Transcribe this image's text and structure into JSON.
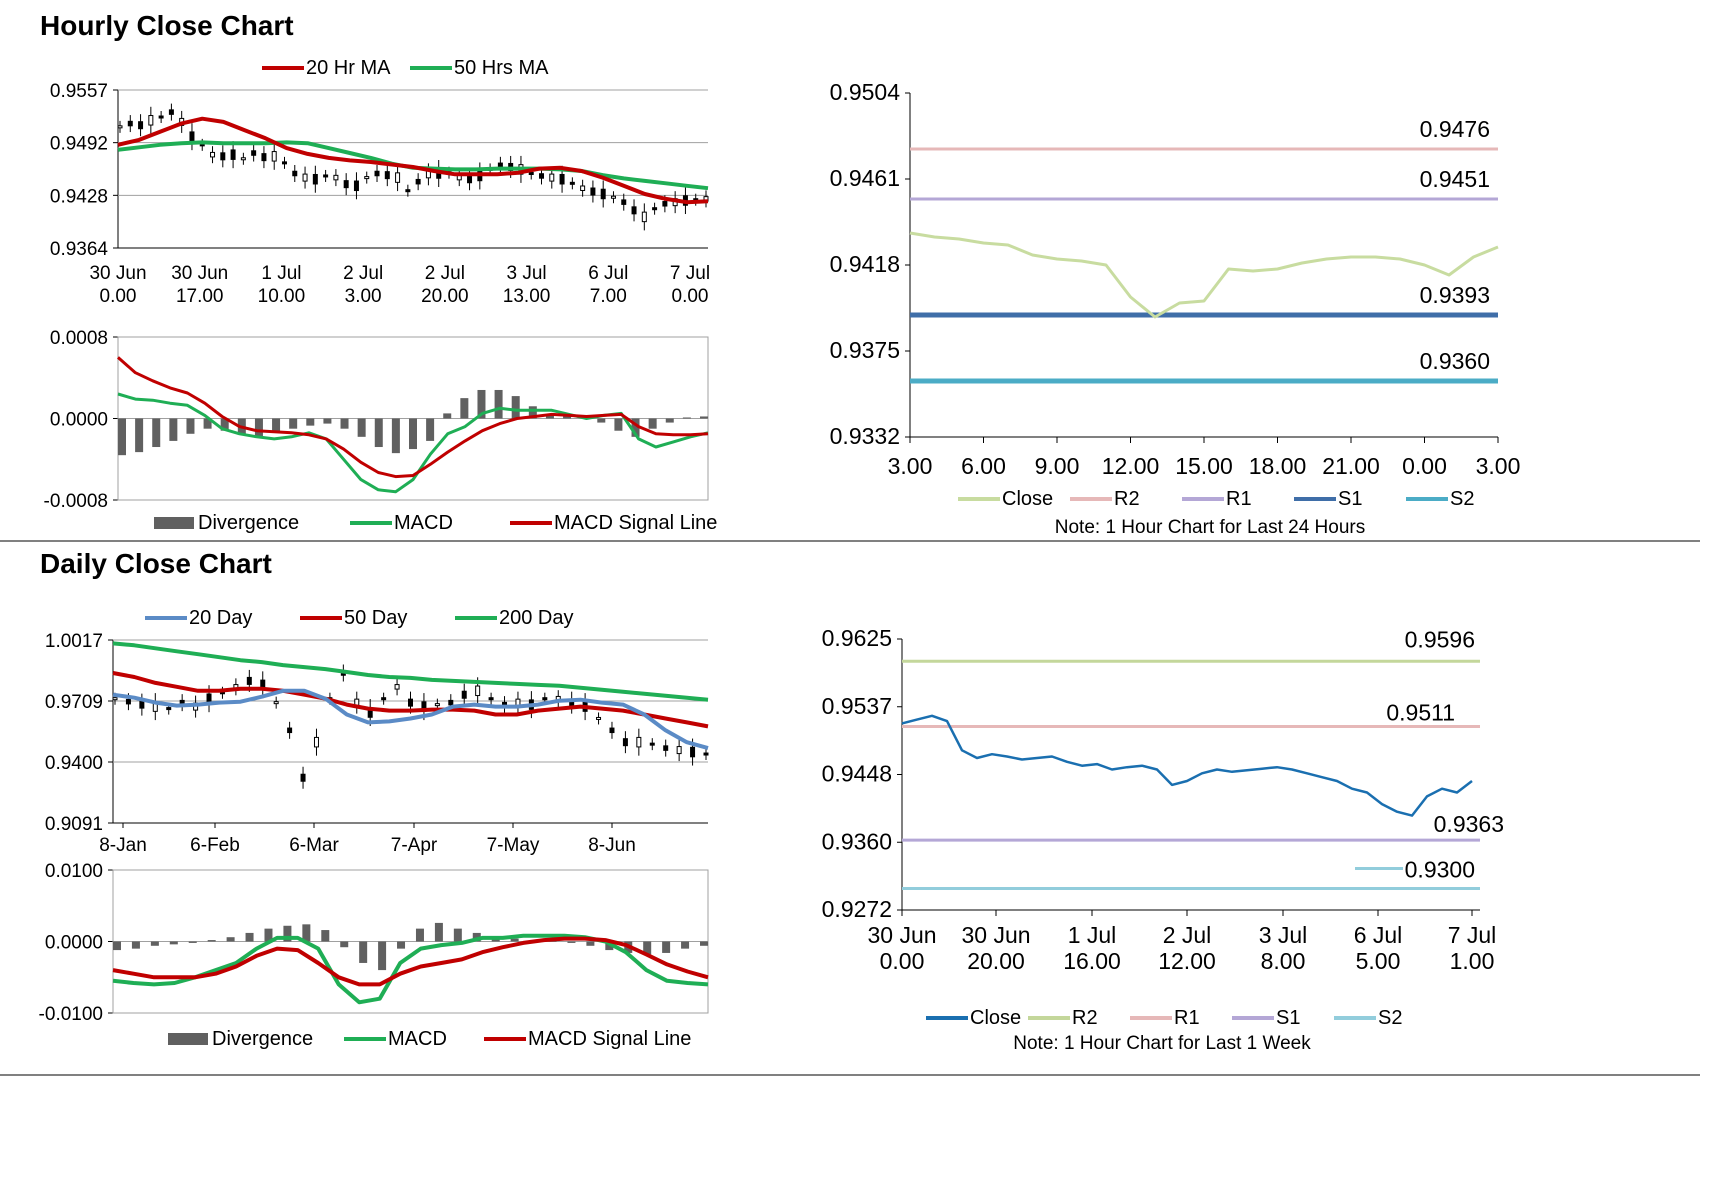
{
  "sections": [
    {
      "title": "Hourly Close Chart"
    },
    {
      "title": "Daily Close Chart"
    }
  ],
  "colors": {
    "red": "#c00000",
    "green": "#1fae55",
    "blue": "#5b8bc6",
    "grid": "#a0a0a0",
    "bar": "#606060",
    "candle": "#000000",
    "close_light": "#c8dca0",
    "r2_pink": "#e6b8b8",
    "r1_lavender": "#b4a7d6",
    "s1_blue": "#3f6ea8",
    "s2_teal": "#4bacc6",
    "close_blue": "#1a6fb0",
    "r2_green": "#c4d79b",
    "s2_light": "#92cddc"
  },
  "legends": {
    "hourly_price": [
      {
        "name": "20 Hr MA",
        "color": "#c00000"
      },
      {
        "name": "50 Hrs MA",
        "color": "#1fae55"
      }
    ],
    "hourly_macd": [
      {
        "name": "Divergence",
        "color": "#606060",
        "box": true
      },
      {
        "name": "MACD",
        "color": "#1fae55"
      },
      {
        "name": "MACD Signal Line",
        "color": "#c00000"
      }
    ],
    "hourly_levels": [
      {
        "name": "Close",
        "color": "#c8dca0"
      },
      {
        "name": "R2",
        "color": "#e6b8b8"
      },
      {
        "name": "R1",
        "color": "#b4a7d6"
      },
      {
        "name": "S1",
        "color": "#3f6ea8"
      },
      {
        "name": "S2",
        "color": "#4bacc6"
      }
    ],
    "daily_price": [
      {
        "name": "20 Day",
        "color": "#5b8bc6"
      },
      {
        "name": "50 Day",
        "color": "#c00000"
      },
      {
        "name": "200 Day",
        "color": "#1fae55"
      }
    ],
    "daily_macd": [
      {
        "name": "Divergence",
        "color": "#606060",
        "box": true
      },
      {
        "name": "MACD",
        "color": "#1fae55"
      },
      {
        "name": "MACD Signal Line",
        "color": "#c00000"
      }
    ],
    "daily_levels": [
      {
        "name": "Close",
        "color": "#1a6fb0"
      },
      {
        "name": "R2",
        "color": "#c4d79b"
      },
      {
        "name": "R1",
        "color": "#e6b8b8"
      },
      {
        "name": "S1",
        "color": "#b4a7d6"
      },
      {
        "name": "S2",
        "color": "#92cddc"
      }
    ]
  },
  "notes": {
    "hourly": "Note: 1 Hour Chart for Last 24 Hours",
    "daily": "Note: 1 Hour Chart for Last 1 Week"
  },
  "chart_data": [
    {
      "id": "hourly_price",
      "type": "line",
      "title": "Hourly Close Chart",
      "yticks": [
        "0.9557",
        "0.9492",
        "0.9428",
        "0.9364"
      ],
      "ylim": [
        0.9364,
        0.9557
      ],
      "xticks": [
        [
          "30 Jun",
          "0.00"
        ],
        [
          "30 Jun",
          "17.00"
        ],
        [
          "1 Jul",
          "10.00"
        ],
        [
          "2 Jul",
          "3.00"
        ],
        [
          "2 Jul",
          "20.00"
        ],
        [
          "3 Jul",
          "13.00"
        ],
        [
          "6 Jul",
          "7.00"
        ],
        [
          "7 Jul",
          "0.00"
        ]
      ],
      "series": [
        {
          "name": "20 Hr MA",
          "color": "#c00000",
          "values": [
            0.949,
            0.9496,
            0.9506,
            0.9516,
            0.9522,
            0.9518,
            0.9508,
            0.9498,
            0.9486,
            0.9479,
            0.9474,
            0.9471,
            0.9469,
            0.9466,
            0.9463,
            0.9458,
            0.9454,
            0.9454,
            0.9454,
            0.9456,
            0.9461,
            0.9462,
            0.9458,
            0.945,
            0.944,
            0.943,
            0.9424,
            0.942,
            0.9421
          ]
        },
        {
          "name": "50 Hrs MA",
          "color": "#1fae55",
          "values": [
            0.9484,
            0.9487,
            0.949,
            0.9492,
            0.9493,
            0.9492,
            0.9492,
            0.9492,
            0.9493,
            0.9492,
            0.9486,
            0.948,
            0.9474,
            0.9467,
            0.9462,
            0.9461,
            0.946,
            0.946,
            0.9461,
            0.9461,
            0.9461,
            0.946,
            0.9458,
            0.9453,
            0.9449,
            0.9446,
            0.9443,
            0.944,
            0.9437
          ]
        },
        {
          "name": "Close",
          "color": "#000000",
          "values": [
            0.9512,
            0.9516,
            0.9514,
            0.952,
            0.9524,
            0.953,
            0.9518,
            0.95,
            0.949,
            0.9478,
            0.9476,
            0.9478,
            0.9473,
            0.948,
            0.9475,
            0.9476,
            0.9468,
            0.9455,
            0.945,
            0.9448,
            0.9452,
            0.945,
            0.9442,
            0.944,
            0.945,
            0.9455,
            0.9453,
            0.945,
            0.9434,
            0.9445,
            0.9454,
            0.9455,
            0.9456,
            0.945,
            0.9448,
            0.9452,
            0.946,
            0.9465,
            0.9463,
            0.946,
            0.9455,
            0.9452,
            0.945,
            0.9448,
            0.9443,
            0.9437,
            0.9433,
            0.943,
            0.9426,
            0.942,
            0.941,
            0.9402,
            0.9412,
            0.9418,
            0.942,
            0.9422,
            0.9423,
            0.9424
          ]
        }
      ]
    },
    {
      "id": "hourly_macd",
      "type": "line",
      "yticks": [
        "0.0008",
        "0.0000",
        "-0.0008"
      ],
      "ylim": [
        -0.0008,
        0.0008
      ],
      "series": [
        {
          "name": "Divergence",
          "color": "#606060",
          "values": [
            -0.00036,
            -0.00033,
            -0.00028,
            -0.00022,
            -0.00015,
            -0.0001,
            -0.00012,
            -0.00016,
            -0.00018,
            -0.00014,
            -0.0001,
            -7e-05,
            -5e-05,
            -0.0001,
            -0.00018,
            -0.00028,
            -0.00034,
            -0.0003,
            -0.00022,
            5e-05,
            0.0002,
            0.00028,
            0.00028,
            0.00022,
            0.00012,
            4e-05,
            2e-05,
            2e-05,
            -4e-05,
            -0.00012,
            -0.00018,
            -0.0001,
            -4e-05,
            1e-05,
            2e-05
          ]
        },
        {
          "name": "MACD",
          "color": "#1fae55",
          "values": [
            0.00024,
            0.00019,
            0.00018,
            0.00015,
            0.00013,
            3e-05,
            -0.0001,
            -0.00015,
            -0.00018,
            -0.0002,
            -0.00018,
            -0.00014,
            -0.0002,
            -0.0004,
            -0.0006,
            -0.0007,
            -0.00072,
            -0.0006,
            -0.00035,
            -0.00015,
            -8e-05,
            5e-05,
            0.0001,
            8e-05,
            8e-05,
            8e-05,
            4e-05,
            0.0,
            3e-05,
            5e-05,
            -0.0002,
            -0.00028,
            -0.00023,
            -0.00018,
            -0.00014
          ]
        },
        {
          "name": "MACD Signal Line",
          "color": "#c00000",
          "values": [
            0.0006,
            0.00045,
            0.00037,
            0.0003,
            0.00025,
            0.00015,
            2e-05,
            -8e-05,
            -0.00012,
            -0.00013,
            -0.00014,
            -0.00016,
            -0.0002,
            -0.0003,
            -0.00043,
            -0.00053,
            -0.00057,
            -0.00056,
            -0.00045,
            -0.00033,
            -0.00022,
            -0.00012,
            -5e-05,
            0.0,
            2e-05,
            4e-05,
            3e-05,
            2e-05,
            3e-05,
            4e-05,
            -8e-05,
            -0.00015,
            -0.00016,
            -0.00016,
            -0.00015
          ]
        }
      ]
    },
    {
      "id": "hourly_levels",
      "type": "line",
      "yticks": [
        "0.9504",
        "0.9461",
        "0.9418",
        "0.9375",
        "0.9332"
      ],
      "ylim": [
        0.9332,
        0.9504
      ],
      "xticks": [
        "3.00",
        "6.00",
        "9.00",
        "12.00",
        "15.00",
        "18.00",
        "21.00",
        "0.00",
        "3.00"
      ],
      "levels": [
        {
          "name": "R2",
          "value": "0.9476",
          "color": "#e6b8b8"
        },
        {
          "name": "R1",
          "value": "0.9451",
          "color": "#b4a7d6"
        },
        {
          "name": "S1",
          "value": "0.9393",
          "color": "#3f6ea8"
        },
        {
          "name": "S2",
          "value": "0.9360",
          "color": "#4bacc6"
        }
      ],
      "series": [
        {
          "name": "Close",
          "color": "#c8dca0",
          "values": [
            0.9434,
            0.9432,
            0.9431,
            0.9429,
            0.9428,
            0.9423,
            0.9421,
            0.942,
            0.9418,
            0.9402,
            0.9392,
            0.9399,
            0.94,
            0.9416,
            0.9415,
            0.9416,
            0.9419,
            0.9421,
            0.9422,
            0.9422,
            0.9421,
            0.9418,
            0.9413,
            0.9422,
            0.9427
          ]
        }
      ]
    },
    {
      "id": "daily_price",
      "type": "line",
      "title": "Daily Close Chart",
      "yticks": [
        "1.0017",
        "0.9709",
        "0.9400",
        "0.9091"
      ],
      "ylim": [
        0.9091,
        1.0017
      ],
      "xticks": [
        "8-Jan",
        "6-Feb",
        "6-Mar",
        "7-Apr",
        "7-May",
        "8-Jun"
      ],
      "series": [
        {
          "name": "20 Day",
          "color": "#5b8bc6",
          "values": [
            0.974,
            0.9725,
            0.97,
            0.9685,
            0.969,
            0.97,
            0.9705,
            0.973,
            0.976,
            0.976,
            0.972,
            0.964,
            0.96,
            0.9605,
            0.962,
            0.964,
            0.968,
            0.969,
            0.968,
            0.968,
            0.969,
            0.971,
            0.9715,
            0.97,
            0.969,
            0.964,
            0.956,
            0.95,
            0.947
          ]
        },
        {
          "name": "50 Day",
          "color": "#c00000",
          "values": [
            0.985,
            0.983,
            0.98,
            0.978,
            0.976,
            0.976,
            0.977,
            0.977,
            0.976,
            0.974,
            0.972,
            0.969,
            0.967,
            0.966,
            0.966,
            0.9665,
            0.9665,
            0.966,
            0.964,
            0.964,
            0.966,
            0.967,
            0.968,
            0.967,
            0.966,
            0.964,
            0.962,
            0.96,
            0.958
          ]
        },
        {
          "name": "200 Day",
          "color": "#1fae55",
          "values": [
            1.0,
            0.999,
            0.9975,
            0.996,
            0.9945,
            0.993,
            0.9915,
            0.9905,
            0.989,
            0.988,
            0.987,
            0.9855,
            0.984,
            0.983,
            0.9825,
            0.9815,
            0.981,
            0.9805,
            0.98,
            0.9795,
            0.979,
            0.9785,
            0.9775,
            0.9765,
            0.9755,
            0.9745,
            0.9735,
            0.9725,
            0.9715
          ]
        },
        {
          "name": "Close",
          "color": "#000000",
          "values": [
            0.972,
            0.9705,
            0.969,
            0.968,
            0.967,
            0.97,
            0.968,
            0.972,
            0.975,
            0.978,
            0.981,
            0.979,
            0.97,
            0.956,
            0.932,
            0.95,
            0.972,
            0.985,
            0.97,
            0.965,
            0.972,
            0.978,
            0.97,
            0.968,
            0.969,
            0.97,
            0.974,
            0.976,
            0.972,
            0.969,
            0.97,
            0.969,
            0.972,
            0.972,
            0.97,
            0.968,
            0.962,
            0.956,
            0.95,
            0.95,
            0.949,
            0.947,
            0.946,
            0.945,
            0.944
          ]
        }
      ]
    },
    {
      "id": "daily_macd",
      "type": "line",
      "yticks": [
        "0.0100",
        "0.0000",
        "-0.0100"
      ],
      "ylim": [
        -0.01,
        0.01
      ],
      "series": [
        {
          "name": "Divergence",
          "color": "#606060",
          "values": [
            -0.0012,
            -0.001,
            -0.0006,
            -0.0004,
            -0.0002,
            0.0002,
            0.0006,
            0.0012,
            0.0018,
            0.0022,
            0.0024,
            0.0016,
            -0.0008,
            -0.003,
            -0.004,
            -0.001,
            0.0018,
            0.0026,
            0.0018,
            0.0012,
            0.0006,
            0.0004,
            0.0002,
            0.0001,
            -0.0002,
            -0.0006,
            -0.0012,
            -0.0016,
            -0.0018,
            -0.0016,
            -0.001,
            -0.0006
          ]
        },
        {
          "name": "MACD",
          "color": "#1fae55",
          "values": [
            -0.0055,
            -0.0058,
            -0.006,
            -0.0058,
            -0.005,
            -0.004,
            -0.003,
            -0.001,
            0.0005,
            0.0005,
            -0.001,
            -0.006,
            -0.0085,
            -0.008,
            -0.003,
            -0.001,
            -0.0005,
            -0.0002,
            0.0005,
            0.0005,
            0.0008,
            0.0008,
            0.0008,
            0.0006,
            0.0,
            -0.0015,
            -0.004,
            -0.0055,
            -0.0058,
            -0.006
          ]
        },
        {
          "name": "MACD Signal Line",
          "color": "#c00000",
          "values": [
            -0.004,
            -0.0045,
            -0.005,
            -0.005,
            -0.005,
            -0.0045,
            -0.0035,
            -0.002,
            -0.001,
            -0.0012,
            -0.003,
            -0.005,
            -0.006,
            -0.006,
            -0.0045,
            -0.0035,
            -0.003,
            -0.0025,
            -0.0015,
            -0.0008,
            -0.0002,
            0.0002,
            0.0004,
            0.0004,
            0.0002,
            -0.0005,
            -0.0018,
            -0.0032,
            -0.0042,
            -0.005
          ]
        }
      ]
    },
    {
      "id": "daily_levels",
      "type": "line",
      "yticks": [
        "0.9625",
        "0.9537",
        "0.9448",
        "0.9360",
        "0.9272"
      ],
      "ylim": [
        0.9272,
        0.9625
      ],
      "xticks": [
        [
          "30 Jun",
          "0.00"
        ],
        [
          "30 Jun",
          "20.00"
        ],
        [
          "1 Jul",
          "16.00"
        ],
        [
          "2 Jul",
          "12.00"
        ],
        [
          "3 Jul",
          "8.00"
        ],
        [
          "6 Jul",
          "5.00"
        ],
        [
          "7 Jul",
          "1.00"
        ]
      ],
      "levels": [
        {
          "name": "R2",
          "value": "0.9596",
          "color": "#c4d79b"
        },
        {
          "name": "R1",
          "value": "0.9511",
          "color": "#e6b8b8"
        },
        {
          "name": "S1",
          "value": "0.9363",
          "color": "#b4a7d6"
        },
        {
          "name": "S2",
          "value": "0.9300",
          "color": "#92cddc"
        }
      ],
      "series": [
        {
          "name": "Close",
          "color": "#1a6fb0",
          "values": [
            0.9515,
            0.952,
            0.9525,
            0.9518,
            0.948,
            0.947,
            0.9475,
            0.9472,
            0.9468,
            0.947,
            0.9472,
            0.9465,
            0.946,
            0.9462,
            0.9455,
            0.9458,
            0.946,
            0.9455,
            0.9435,
            0.944,
            0.945,
            0.9455,
            0.9452,
            0.9454,
            0.9456,
            0.9458,
            0.9455,
            0.945,
            0.9445,
            0.944,
            0.943,
            0.9425,
            0.941,
            0.94,
            0.9395,
            0.942,
            0.943,
            0.9425,
            0.944
          ]
        }
      ]
    }
  ]
}
